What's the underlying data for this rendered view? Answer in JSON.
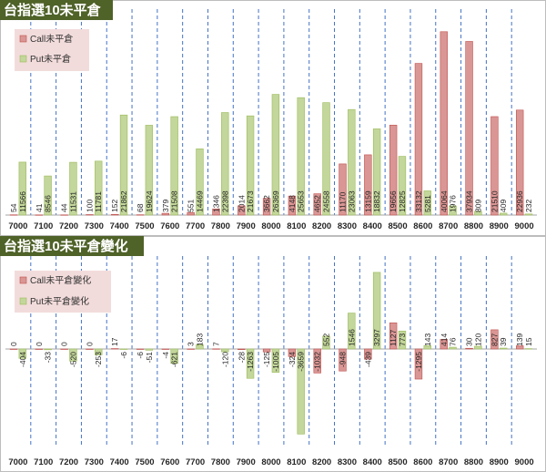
{
  "chart_data": [
    {
      "type": "bar",
      "title": "台指選10未平倉",
      "categories": [
        "7000",
        "7100",
        "7200",
        "7300",
        "7400",
        "7500",
        "7600",
        "7700",
        "7800",
        "7900",
        "8000",
        "8100",
        "8200",
        "8300",
        "8400",
        "8500",
        "8600",
        "8700",
        "8800",
        "8900",
        "9000"
      ],
      "series": [
        {
          "name": "Call未平倉",
          "color": "#d99694",
          "values": [
            54,
            41,
            44,
            100,
            152,
            68,
            379,
            551,
            1346,
            2014,
            3662,
            4148,
            4652,
            11170,
            13159,
            19656,
            33132,
            40064,
            37934,
            21510,
            22936
          ]
        },
        {
          "name": "Put未平倉",
          "color": "#c3d69b",
          "values": [
            11566,
            8546,
            11531,
            11781,
            21862,
            19624,
            21508,
            14469,
            22398,
            21673,
            26369,
            25653,
            24558,
            23063,
            18832,
            12825,
            5281,
            1976,
            809,
            409,
            232
          ]
        }
      ],
      "ylim": [
        0,
        45000
      ],
      "legend": "top-left"
    },
    {
      "type": "bar",
      "title": "台指選10未平倉變化",
      "categories": [
        "7000",
        "7100",
        "7200",
        "7300",
        "7400",
        "7500",
        "7600",
        "7700",
        "7800",
        "7900",
        "8000",
        "8100",
        "8200",
        "8300",
        "8400",
        "8500",
        "8600",
        "8700",
        "8800",
        "8900",
        "9000"
      ],
      "series": [
        {
          "name": "Call未平倉變化",
          "color": "#d99694",
          "values": [
            0,
            0,
            0,
            0,
            17,
            -6,
            -4,
            3,
            7,
            -28,
            -125,
            -324,
            -1032,
            -948,
            -439,
            1127,
            -1295,
            414,
            30,
            827,
            139
          ]
        },
        {
          "name": "Put未平倉變化",
          "color": "#c3d69b",
          "values": [
            -404,
            -33,
            -520,
            -253,
            -6,
            -51,
            -621,
            183,
            -120,
            -1263,
            -1005,
            -3659,
            552,
            1546,
            3297,
            773,
            143,
            76,
            120,
            39,
            15
          ]
        }
      ],
      "ylim": [
        -4000,
        4000
      ],
      "legend": "top-left"
    }
  ]
}
